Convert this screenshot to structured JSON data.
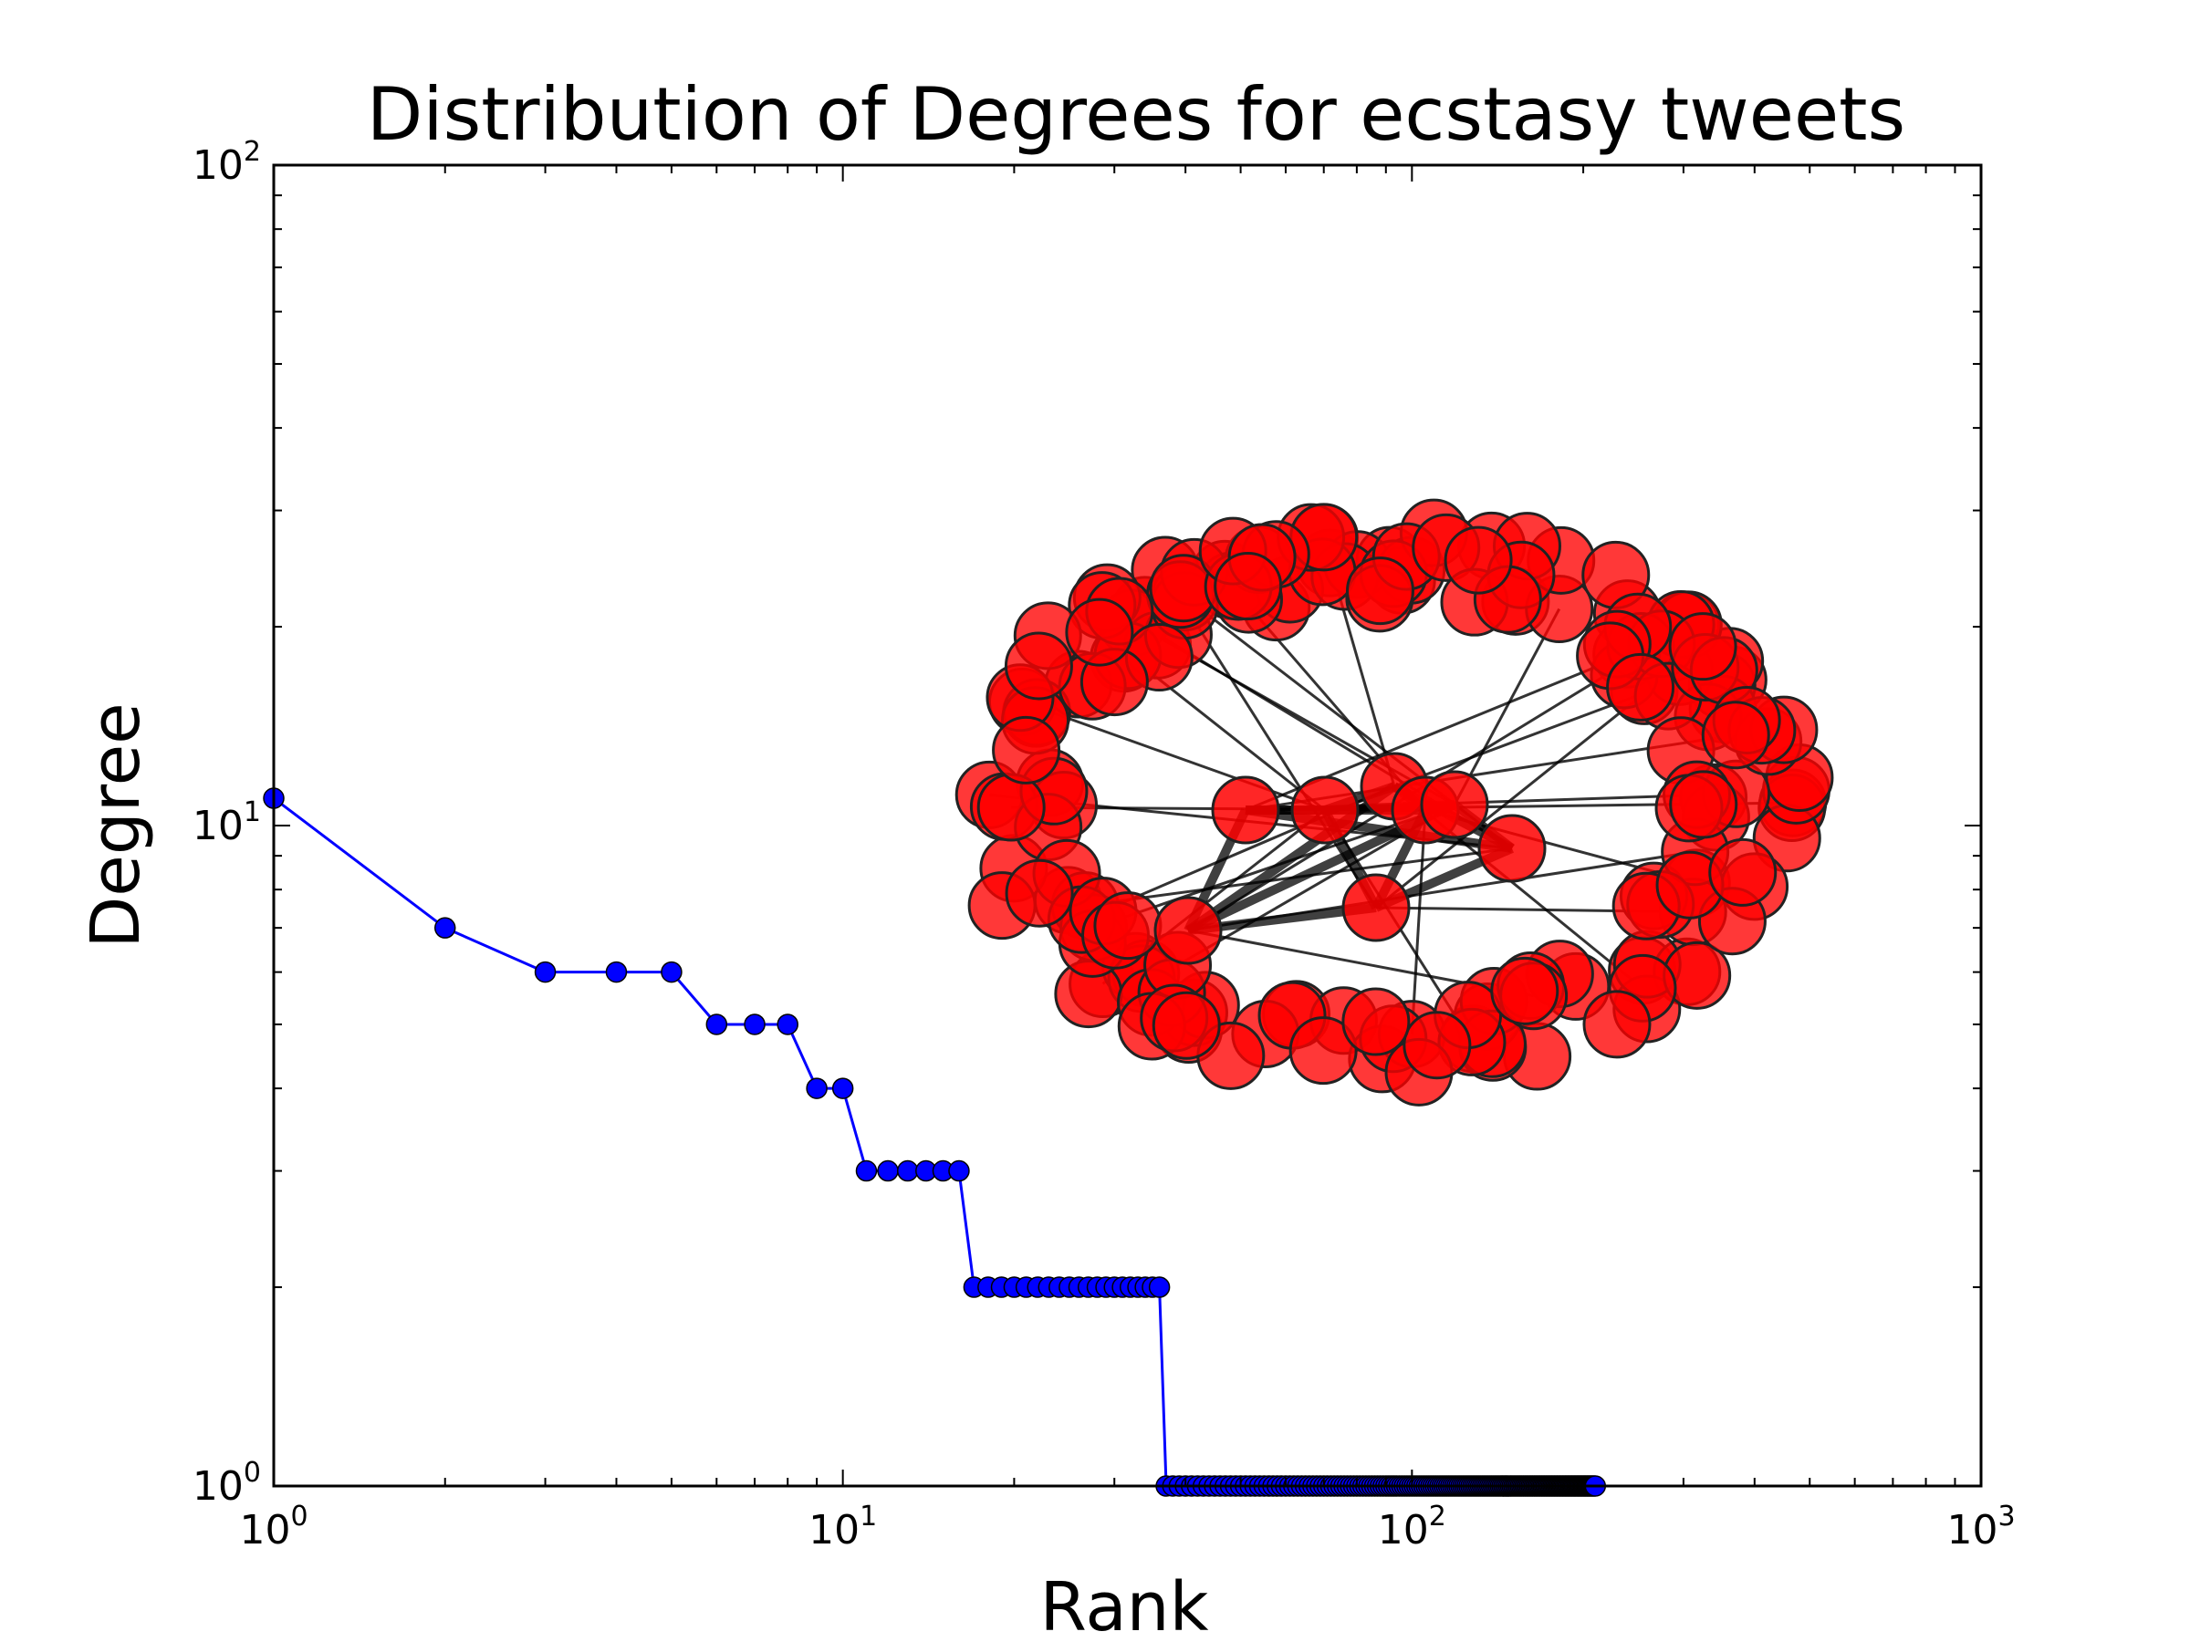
{
  "chart_data": {
    "type": "line",
    "title": "Distribution of Degrees for ecstasy tweets",
    "xlabel": "Rank",
    "ylabel": "Degree",
    "xscale": "log",
    "yscale": "log",
    "xlim": [
      1,
      1000
    ],
    "ylim": [
      1,
      100
    ],
    "x_ticks": [
      {
        "base": "10",
        "exp": "0",
        "value": 1
      },
      {
        "base": "10",
        "exp": "1",
        "value": 10
      },
      {
        "base": "10",
        "exp": "2",
        "value": 100
      },
      {
        "base": "10",
        "exp": "3",
        "value": 1000
      }
    ],
    "y_ticks": [
      {
        "base": "10",
        "exp": "0",
        "value": 1
      },
      {
        "base": "10",
        "exp": "1",
        "value": 10
      },
      {
        "base": "10",
        "exp": "2",
        "value": 100
      }
    ],
    "grid": false,
    "legend": "none",
    "series": [
      {
        "line_color": "#0000ff",
        "marker_color": "#0000ff",
        "runs": [
          {
            "degree": 11,
            "from_rank": 1,
            "to_rank": 1
          },
          {
            "degree": 7,
            "from_rank": 2,
            "to_rank": 2
          },
          {
            "degree": 6,
            "from_rank": 3,
            "to_rank": 5
          },
          {
            "degree": 5,
            "from_rank": 6,
            "to_rank": 8
          },
          {
            "degree": 4,
            "from_rank": 9,
            "to_rank": 10
          },
          {
            "degree": 3,
            "from_rank": 11,
            "to_rank": 16
          },
          {
            "degree": 2,
            "from_rank": 17,
            "to_rank": 36
          },
          {
            "degree": 1,
            "from_rank": 37,
            "to_rank": 210
          }
        ]
      }
    ],
    "inset_network": {
      "description_visible": false,
      "node_color": "#ff0000",
      "node_edge_color": "#222222",
      "edge_color": "#000000",
      "node_count": 180,
      "hub_count": 8
    }
  }
}
